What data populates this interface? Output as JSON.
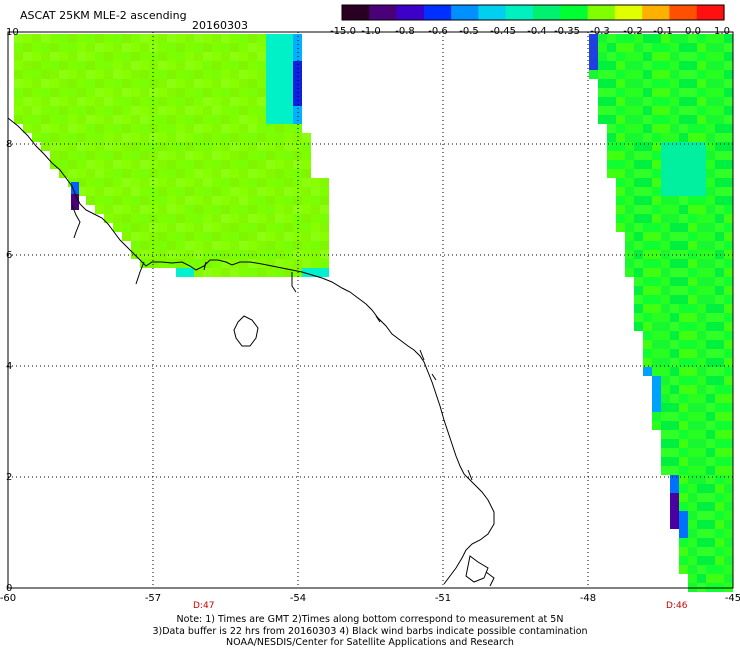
{
  "header": {
    "title": "ASCAT 25KM MLE-2 ascending",
    "date": "20160303"
  },
  "colorbar": {
    "labels": [
      "-15.0",
      "-1.0",
      "-0.8",
      "-0.6",
      "-0.5",
      "-0.45",
      "-0.4",
      "-0.35",
      "-0.3",
      "-0.2",
      "-0.1",
      "0.0",
      "1.0"
    ],
    "colors": [
      "#2a0022",
      "#4a0078",
      "#3c00c8",
      "#0030ff",
      "#0090ff",
      "#00d0f0",
      "#00f0c0",
      "#00f070",
      "#00ff30",
      "#80ff00",
      "#e0ff00",
      "#ffb000",
      "#ff5000",
      "#ff1010"
    ]
  },
  "map": {
    "lon_labels": [
      "-60",
      "-57",
      "-54",
      "-51",
      "-48",
      "-45"
    ],
    "lat_labels": [
      "0",
      "2",
      "4",
      "6",
      "8",
      "10"
    ],
    "time_labels": [
      "D:47",
      "D:46"
    ]
  },
  "notes": {
    "line1": "Note: 1) Times are GMT 2)Times along bottom correspond to measurement at 5N",
    "line2": "3)Data buffer is 22 hrs from 20160303 4) Black wind barbs indicate possible contamination",
    "line3": "NOAA/NESDIS/Center for Satellite Applications and Research"
  }
}
